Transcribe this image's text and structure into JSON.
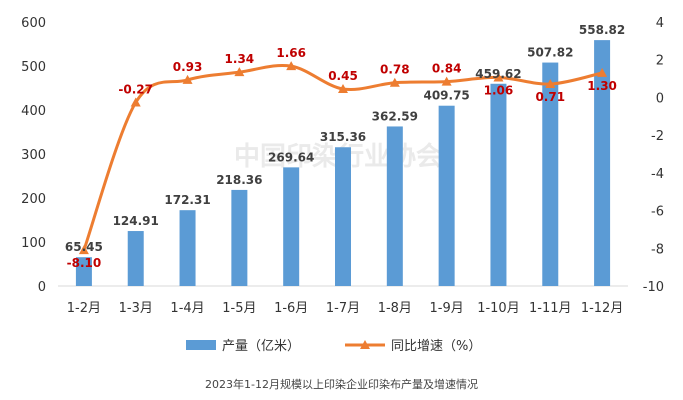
{
  "caption": "2023年1-12月规模以上印染企业印染布产量及增速情况",
  "watermark": "中国印染行业协会",
  "chart_data": {
    "type": "bar",
    "categories": [
      "1-2月",
      "1-3月",
      "1-4月",
      "1-5月",
      "1-6月",
      "1-7月",
      "1-8月",
      "1-9月",
      "1-10月",
      "1-11月",
      "1-12月"
    ],
    "series": [
      {
        "name": "产量（亿米）",
        "type": "bar",
        "axis": "left",
        "color": "#5b9bd5",
        "values": [
          65.45,
          124.91,
          172.31,
          218.36,
          269.64,
          315.36,
          362.59,
          409.75,
          459.62,
          507.82,
          558.82
        ],
        "labels": [
          "65.45",
          "124.91",
          "172.31",
          "218.36",
          "269.64",
          "315.36",
          "362.59",
          "409.75",
          "459.62",
          "507.82",
          "558.82"
        ]
      },
      {
        "name": "同比增速（%）",
        "type": "line",
        "axis": "right",
        "color": "#ed7d31",
        "label_color": "#c00000",
        "values": [
          -8.1,
          -0.27,
          0.93,
          1.34,
          1.66,
          0.45,
          0.78,
          0.84,
          1.06,
          0.71,
          1.3
        ],
        "labels": [
          "-8.10",
          "-0.27",
          "0.93",
          "1.34",
          "1.66",
          "0.45",
          "0.78",
          "0.84",
          "1.06",
          "0.71",
          "1.30"
        ]
      }
    ],
    "y_left": {
      "range": [
        0,
        600
      ],
      "ticks": [
        "0",
        "100",
        "200",
        "300",
        "400",
        "500",
        "600"
      ]
    },
    "y_right": {
      "range": [
        -10,
        4
      ],
      "ticks": [
        "-10",
        "-8",
        "-6",
        "-4",
        "-2",
        "0",
        "2",
        "4"
      ]
    },
    "grid": false,
    "legend_position": "bottom"
  }
}
